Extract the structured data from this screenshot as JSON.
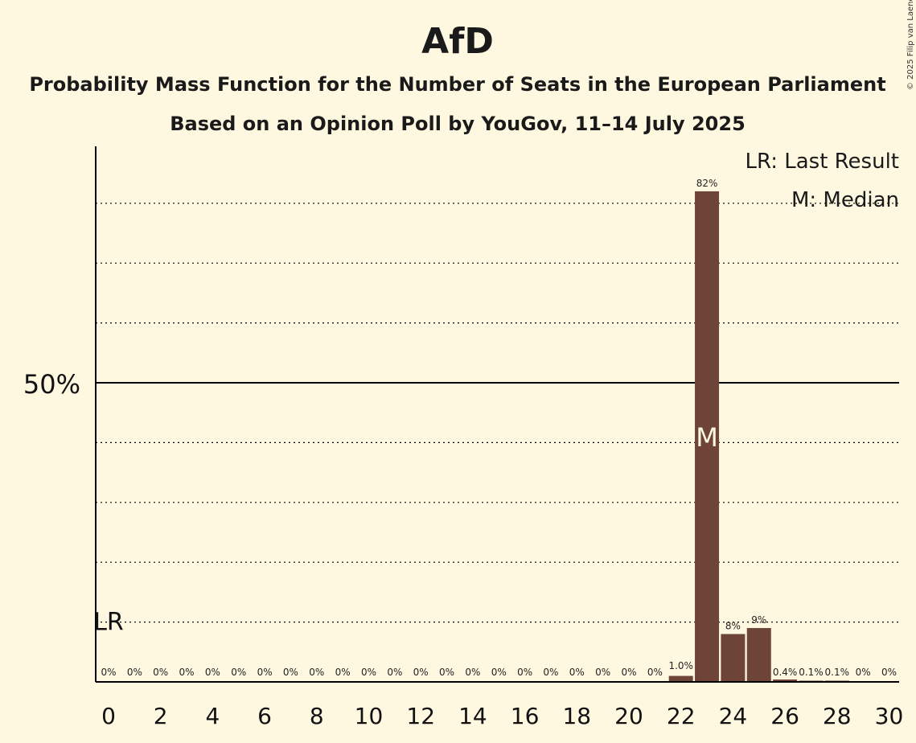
{
  "chart_data": {
    "type": "bar",
    "title": "AfD",
    "subtitle_1": "Probability Mass Function for the Number of Seats in the European Parliament",
    "subtitle_2": "Based on an Opinion Poll by YouGov, 11–14 July 2025",
    "copyright": "© 2025 Filip van Laenen",
    "x": [
      0,
      1,
      2,
      3,
      4,
      5,
      6,
      7,
      8,
      9,
      10,
      11,
      12,
      13,
      14,
      15,
      16,
      17,
      18,
      19,
      20,
      21,
      22,
      23,
      24,
      25,
      26,
      27,
      28,
      29,
      30
    ],
    "values": [
      0,
      0,
      0,
      0,
      0,
      0,
      0,
      0,
      0,
      0,
      0,
      0,
      0,
      0,
      0,
      0,
      0,
      0,
      0,
      0,
      0,
      0,
      1.0,
      82,
      8,
      9,
      0.4,
      0.1,
      0.1,
      0,
      0
    ],
    "value_labels": [
      "0%",
      "0%",
      "0%",
      "0%",
      "0%",
      "0%",
      "0%",
      "0%",
      "0%",
      "0%",
      "0%",
      "0%",
      "0%",
      "0%",
      "0%",
      "0%",
      "0%",
      "0%",
      "0%",
      "0%",
      "0%",
      "0%",
      "1.0%",
      "82%",
      "8%",
      "9%",
      "0.4%",
      "0.1%",
      "0.1%",
      "0%",
      "0%"
    ],
    "x_tick_labels": [
      "0",
      "2",
      "4",
      "6",
      "8",
      "10",
      "12",
      "14",
      "16",
      "18",
      "20",
      "22",
      "24",
      "26",
      "28",
      "30"
    ],
    "x_tick_values": [
      0,
      2,
      4,
      6,
      8,
      10,
      12,
      14,
      16,
      18,
      20,
      22,
      24,
      26,
      28,
      30
    ],
    "y_tick_label": "50%",
    "y_tick_value": 50,
    "ylim": [
      0,
      89
    ],
    "gridlines": [
      10,
      20,
      30,
      40,
      60,
      70,
      80
    ],
    "last_result_seats": 0,
    "last_result_level": 10,
    "last_result_label": "LR",
    "median_seats": 23,
    "median_label": "M",
    "median_level": 41,
    "legend": {
      "last_result": "LR: Last Result",
      "median": "M: Median",
      "placement": "top-right"
    },
    "colors": {
      "bar": "#6E4438",
      "background": "#FFF8E1",
      "axis": "#000000"
    }
  }
}
